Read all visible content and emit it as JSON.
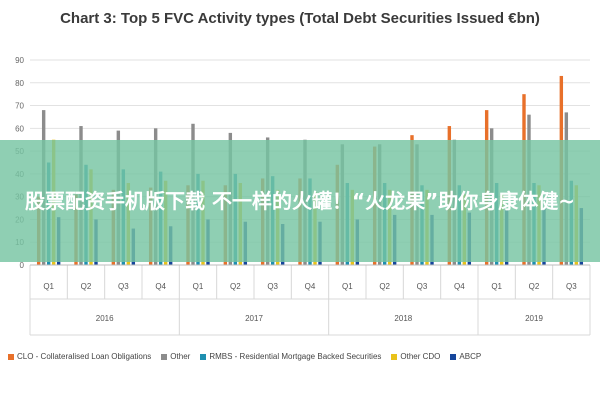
{
  "overlay": {
    "text": "股票配资手机版下载 不一样的火罐！“火龙果”助你身康体健~"
  },
  "chart_data": {
    "type": "bar",
    "title": "Chart 3: Top 5 FVC Activity types (Total Debt Securities Issued €bn)",
    "ylim": [
      0,
      90
    ],
    "yticks": [
      0,
      10,
      20,
      30,
      40,
      50,
      60,
      70,
      80,
      90
    ],
    "grid": true,
    "legend_position": "bottom",
    "categories": [
      "Q1",
      "Q2",
      "Q3",
      "Q4",
      "Q1",
      "Q2",
      "Q3",
      "Q4",
      "Q1",
      "Q2",
      "Q3",
      "Q4",
      "Q1",
      "Q2",
      "Q3"
    ],
    "year_groups": [
      {
        "label": "2016",
        "count": 4
      },
      {
        "label": "2017",
        "count": 4
      },
      {
        "label": "2018",
        "count": 4
      },
      {
        "label": "2019",
        "count": 3
      }
    ],
    "series": [
      {
        "name": "CLO - Collateralised Loan Obligations",
        "color": "#e8702a",
        "values": [
          30,
          31,
          33,
          34,
          35,
          35,
          38,
          38,
          44,
          52,
          57,
          61,
          68,
          75,
          83
        ]
      },
      {
        "name": "Other",
        "color": "#8c8c8c",
        "values": [
          68,
          61,
          59,
          60,
          62,
          58,
          56,
          55,
          53,
          53,
          53,
          55,
          60,
          66,
          67
        ]
      },
      {
        "name": "RMBS - Residential Mortgage Backed Securities",
        "color": "#1f8fb0",
        "values": [
          45,
          44,
          42,
          41,
          40,
          40,
          39,
          38,
          36,
          36,
          35,
          35,
          36,
          36,
          37
        ]
      },
      {
        "name": "Other CDO",
        "color": "#e9c21a",
        "values": [
          55,
          42,
          36,
          37,
          37,
          36,
          33,
          32,
          33,
          33,
          33,
          31,
          31,
          35,
          35
        ]
      },
      {
        "name": "ABCP",
        "color": "#16469c",
        "values": [
          21,
          20,
          16,
          17,
          20,
          19,
          18,
          19,
          20,
          22,
          22,
          23,
          24,
          25,
          25
        ]
      }
    ]
  }
}
